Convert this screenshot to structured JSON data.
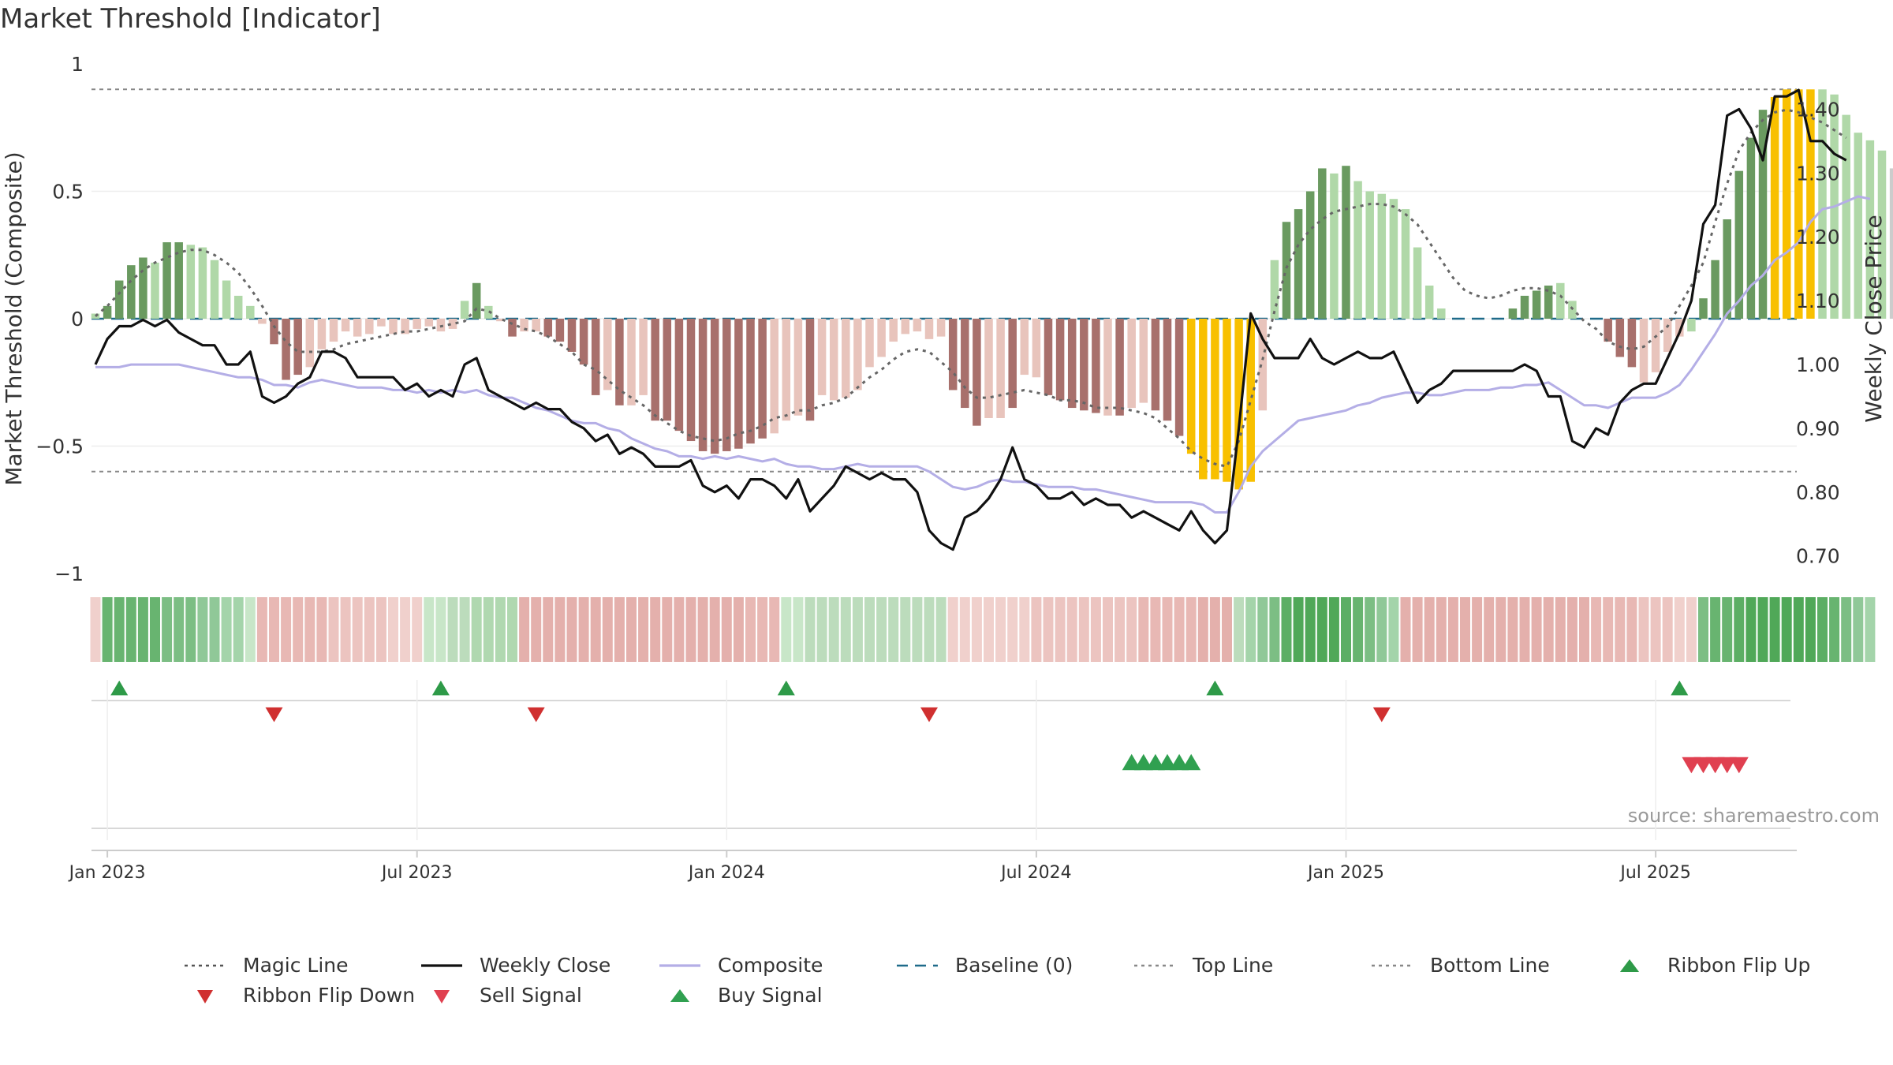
{
  "chart_data": {
    "type": "bar",
    "title": "Market Threshold [Indicator]",
    "ylabel": "Market Threshold (Composite)",
    "y2label": "Weekly Close Price",
    "ylim": [
      -1,
      1
    ],
    "y2lim": [
      0.65,
      1.45
    ],
    "y_ticks": [
      {
        "value": 1,
        "label": "1"
      },
      {
        "value": 0.5,
        "label": "0.5"
      },
      {
        "value": 0,
        "label": "0"
      },
      {
        "value": -0.5,
        "label": "−0.5"
      },
      {
        "value": -1,
        "label": "−1"
      }
    ],
    "y2_ticks": [
      {
        "value": 1.4,
        "label": "1.40"
      },
      {
        "value": 1.3,
        "label": "1.30"
      },
      {
        "value": 1.2,
        "label": "1.20"
      },
      {
        "value": 1.1,
        "label": "1.10"
      },
      {
        "value": 1.0,
        "label": "1.00"
      },
      {
        "value": 0.9,
        "label": "0.90"
      },
      {
        "value": 0.8,
        "label": "0.80"
      },
      {
        "value": 0.7,
        "label": "0.70"
      }
    ],
    "x_ticks": [
      {
        "week": 1,
        "label": "Jan 2023"
      },
      {
        "week": 27,
        "label": "Jul 2023"
      },
      {
        "week": 53,
        "label": "Jan 2024"
      },
      {
        "week": 79,
        "label": "Jul 2024"
      },
      {
        "week": 105,
        "label": "Jan 2025"
      },
      {
        "week": 131,
        "label": "Jul 2025"
      }
    ],
    "top_line": 0.9,
    "bottom_line": -0.6,
    "baseline": 0,
    "bar_colors": {
      "strong_up": "#6a9a60",
      "weak_up": "#b0d8a8",
      "strong_down": "#a8706c",
      "weak_down": "#e8c4bc",
      "extreme": "#f8c000"
    },
    "bars": [
      0.02,
      0.05,
      0.15,
      0.21,
      0.24,
      0.22,
      0.3,
      0.3,
      0.29,
      0.28,
      0.23,
      0.15,
      0.09,
      0.05,
      -0.02,
      -0.1,
      -0.24,
      -0.22,
      -0.19,
      -0.12,
      -0.09,
      -0.05,
      -0.07,
      -0.06,
      -0.03,
      -0.06,
      -0.06,
      -0.04,
      -0.03,
      -0.05,
      -0.04,
      0.07,
      0.14,
      0.05,
      -0.01,
      -0.07,
      -0.05,
      -0.05,
      -0.07,
      -0.09,
      -0.13,
      -0.18,
      -0.3,
      -0.28,
      -0.34,
      -0.34,
      -0.3,
      -0.4,
      -0.4,
      -0.44,
      -0.48,
      -0.52,
      -0.53,
      -0.52,
      -0.51,
      -0.49,
      -0.47,
      -0.45,
      -0.4,
      -0.38,
      -0.4,
      -0.3,
      -0.32,
      -0.31,
      -0.28,
      -0.19,
      -0.15,
      -0.09,
      -0.06,
      -0.05,
      -0.08,
      -0.07,
      -0.28,
      -0.35,
      -0.42,
      -0.39,
      -0.39,
      -0.35,
      -0.22,
      -0.23,
      -0.3,
      -0.32,
      -0.35,
      -0.36,
      -0.37,
      -0.38,
      -0.38,
      -0.35,
      -0.33,
      -0.36,
      -0.4,
      -0.46,
      -0.53,
      -0.63,
      -0.63,
      -0.64,
      -0.67,
      -0.64,
      -0.36,
      0.23,
      0.38,
      0.43,
      0.5,
      0.59,
      0.57,
      0.6,
      0.54,
      0.5,
      0.49,
      0.47,
      0.43,
      0.28,
      0.13,
      0.04,
      0.0,
      0.0,
      0.0,
      0.0,
      0.0,
      0.04,
      0.09,
      0.11,
      0.13,
      0.14,
      0.07,
      0.0,
      0.0,
      -0.09,
      -0.15,
      -0.19,
      -0.25,
      -0.21,
      -0.13,
      -0.07,
      -0.05,
      0.08,
      0.23,
      0.39,
      0.58,
      0.71,
      0.82,
      0.87,
      0.9,
      0.9,
      0.9,
      0.9,
      0.88,
      0.8,
      0.73,
      0.7,
      0.66,
      0.59
    ],
    "bar_classes": [
      "wu",
      "su",
      "su",
      "su",
      "su",
      "wu",
      "su",
      "su",
      "wu",
      "wu",
      "wu",
      "wu",
      "wu",
      "wu",
      "wd",
      "sd",
      "sd",
      "sd",
      "wd",
      "wd",
      "wd",
      "wd",
      "wd",
      "wd",
      "wd",
      "wd",
      "wd",
      "wd",
      "wd",
      "wd",
      "wd",
      "wu",
      "su",
      "wu",
      "wd",
      "sd",
      "wd",
      "wd",
      "sd",
      "sd",
      "sd",
      "sd",
      "sd",
      "wd",
      "sd",
      "wd",
      "wd",
      "sd",
      "sd",
      "sd",
      "sd",
      "sd",
      "sd",
      "sd",
      "sd",
      "sd",
      "sd",
      "wd",
      "wd",
      "wd",
      "sd",
      "wd",
      "wd",
      "wd",
      "wd",
      "wd",
      "wd",
      "wd",
      "wd",
      "wd",
      "wd",
      "wd",
      "sd",
      "sd",
      "sd",
      "wd",
      "wd",
      "sd",
      "wd",
      "wd",
      "sd",
      "sd",
      "sd",
      "sd",
      "sd",
      "wd",
      "sd",
      "wd",
      "wd",
      "sd",
      "sd",
      "sd",
      "ex",
      "ex",
      "ex",
      "ex",
      "ex",
      "ex",
      "wd",
      "wu",
      "su",
      "su",
      "su",
      "su",
      "wu",
      "su",
      "wu",
      "wu",
      "wu",
      "wu",
      "wu",
      "wu",
      "wu",
      "wu",
      "wu",
      "wu",
      "wu",
      "wu",
      "wu",
      "su",
      "su",
      "su",
      "su",
      "wu",
      "wu",
      "wu",
      "sd",
      "sd",
      "sd",
      "sd",
      "wd",
      "wd",
      "wd",
      "wd",
      "wu",
      "su",
      "su",
      "su",
      "su",
      "su",
      "su",
      "ex",
      "ex",
      "ex",
      "ex",
      "wu",
      "wu",
      "wu",
      "wu",
      "wu",
      "wu"
    ],
    "series": [
      {
        "name": "Weekly Close",
        "axis": "right",
        "values": [
          1.0,
          1.04,
          1.06,
          1.06,
          1.07,
          1.06,
          1.07,
          1.05,
          1.04,
          1.03,
          1.03,
          1.0,
          1.0,
          1.02,
          0.95,
          0.94,
          0.95,
          0.97,
          0.98,
          1.02,
          1.02,
          1.01,
          0.98,
          0.98,
          0.98,
          0.98,
          0.96,
          0.97,
          0.95,
          0.96,
          0.95,
          1.0,
          1.01,
          0.96,
          0.95,
          0.94,
          0.93,
          0.94,
          0.93,
          0.93,
          0.91,
          0.9,
          0.88,
          0.89,
          0.86,
          0.87,
          0.86,
          0.84,
          0.84,
          0.84,
          0.85,
          0.81,
          0.8,
          0.81,
          0.79,
          0.82,
          0.82,
          0.81,
          0.79,
          0.82,
          0.77,
          0.79,
          0.81,
          0.84,
          0.83,
          0.82,
          0.83,
          0.82,
          0.82,
          0.8,
          0.74,
          0.72,
          0.71,
          0.76,
          0.77,
          0.79,
          0.82,
          0.87,
          0.82,
          0.81,
          0.79,
          0.79,
          0.8,
          0.78,
          0.79,
          0.78,
          0.78,
          0.76,
          0.77,
          0.76,
          0.75,
          0.74,
          0.77,
          0.74,
          0.72,
          0.74,
          0.9,
          1.08,
          1.04,
          1.01,
          1.01,
          1.01,
          1.04,
          1.01,
          1.0,
          1.01,
          1.02,
          1.01,
          1.01,
          1.02,
          0.98,
          0.94,
          0.96,
          0.97,
          0.99,
          0.99,
          0.99,
          0.99,
          0.99,
          0.99,
          1.0,
          0.99,
          0.95,
          0.95,
          0.88,
          0.87,
          0.9,
          0.89,
          0.94,
          0.96,
          0.97,
          0.97,
          1.01,
          1.05,
          1.1,
          1.22,
          1.25,
          1.39,
          1.4,
          1.37,
          1.32,
          1.42,
          1.42,
          1.43,
          1.35,
          1.35,
          1.33,
          1.32
        ]
      },
      {
        "name": "Composite",
        "axis": "left",
        "values": [
          -0.19,
          -0.19,
          -0.19,
          -0.18,
          -0.18,
          -0.18,
          -0.18,
          -0.18,
          -0.19,
          -0.2,
          -0.21,
          -0.22,
          -0.23,
          -0.23,
          -0.24,
          -0.26,
          -0.26,
          -0.27,
          -0.25,
          -0.24,
          -0.25,
          -0.26,
          -0.27,
          -0.27,
          -0.27,
          -0.28,
          -0.28,
          -0.29,
          -0.28,
          -0.29,
          -0.28,
          -0.29,
          -0.28,
          -0.3,
          -0.31,
          -0.31,
          -0.33,
          -0.35,
          -0.36,
          -0.38,
          -0.4,
          -0.41,
          -0.41,
          -0.43,
          -0.44,
          -0.47,
          -0.49,
          -0.51,
          -0.52,
          -0.54,
          -0.54,
          -0.55,
          -0.54,
          -0.55,
          -0.54,
          -0.55,
          -0.56,
          -0.55,
          -0.57,
          -0.58,
          -0.58,
          -0.59,
          -0.59,
          -0.58,
          -0.57,
          -0.58,
          -0.58,
          -0.58,
          -0.58,
          -0.58,
          -0.6,
          -0.63,
          -0.66,
          -0.67,
          -0.66,
          -0.64,
          -0.63,
          -0.64,
          -0.64,
          -0.65,
          -0.66,
          -0.66,
          -0.66,
          -0.67,
          -0.67,
          -0.68,
          -0.69,
          -0.7,
          -0.71,
          -0.72,
          -0.72,
          -0.72,
          -0.72,
          -0.73,
          -0.76,
          -0.76,
          -0.68,
          -0.58,
          -0.52,
          -0.48,
          -0.44,
          -0.4,
          -0.39,
          -0.38,
          -0.37,
          -0.36,
          -0.34,
          -0.33,
          -0.31,
          -0.3,
          -0.29,
          -0.29,
          -0.3,
          -0.3,
          -0.29,
          -0.28,
          -0.28,
          -0.28,
          -0.27,
          -0.27,
          -0.26,
          -0.26,
          -0.25,
          -0.28,
          -0.31,
          -0.34,
          -0.34,
          -0.35,
          -0.33,
          -0.31,
          -0.31,
          -0.31,
          -0.29,
          -0.26,
          -0.2,
          -0.13,
          -0.06,
          0.02,
          0.07,
          0.13,
          0.17,
          0.23,
          0.26,
          0.3,
          0.38,
          0.43,
          0.44,
          0.46,
          0.48,
          0.47
        ]
      },
      {
        "name": "Magic Line",
        "axis": "left",
        "values": [
          0.01,
          0.05,
          0.1,
          0.15,
          0.19,
          0.22,
          0.24,
          0.26,
          0.27,
          0.27,
          0.25,
          0.22,
          0.18,
          0.12,
          0.05,
          -0.03,
          -0.09,
          -0.13,
          -0.13,
          -0.13,
          -0.12,
          -0.1,
          -0.09,
          -0.08,
          -0.07,
          -0.06,
          -0.05,
          -0.05,
          -0.04,
          -0.03,
          -0.02,
          -0.01,
          0.04,
          0.03,
          0.0,
          -0.02,
          -0.04,
          -0.05,
          -0.07,
          -0.1,
          -0.13,
          -0.18,
          -0.2,
          -0.24,
          -0.28,
          -0.31,
          -0.34,
          -0.38,
          -0.41,
          -0.44,
          -0.46,
          -0.47,
          -0.48,
          -0.47,
          -0.45,
          -0.44,
          -0.42,
          -0.39,
          -0.38,
          -0.36,
          -0.36,
          -0.34,
          -0.33,
          -0.31,
          -0.27,
          -0.23,
          -0.2,
          -0.16,
          -0.13,
          -0.12,
          -0.13,
          -0.17,
          -0.21,
          -0.27,
          -0.31,
          -0.31,
          -0.3,
          -0.29,
          -0.28,
          -0.29,
          -0.3,
          -0.32,
          -0.32,
          -0.33,
          -0.35,
          -0.35,
          -0.35,
          -0.36,
          -0.37,
          -0.39,
          -0.43,
          -0.47,
          -0.52,
          -0.55,
          -0.57,
          -0.58,
          -0.48,
          -0.32,
          -0.16,
          0.03,
          0.2,
          0.29,
          0.35,
          0.39,
          0.42,
          0.43,
          0.44,
          0.45,
          0.45,
          0.44,
          0.41,
          0.37,
          0.3,
          0.23,
          0.16,
          0.11,
          0.09,
          0.08,
          0.09,
          0.11,
          0.12,
          0.12,
          0.11,
          0.09,
          0.04,
          -0.01,
          -0.04,
          -0.09,
          -0.11,
          -0.12,
          -0.11,
          -0.07,
          -0.03,
          0.05,
          0.13,
          0.22,
          0.38,
          0.53,
          0.66,
          0.73,
          0.78,
          0.81,
          0.82,
          0.81,
          0.79,
          0.77,
          0.74,
          0.71
        ]
      }
    ],
    "ribbon": [
      "#f0d0cc",
      "#68b470",
      "#68b470",
      "#68b470",
      "#68b470",
      "#68b470",
      "#7cbe84",
      "#7cbe84",
      "#7cbe84",
      "#90c898",
      "#90c898",
      "#a4d4aa",
      "#a4d4aa",
      "#c8e6c8",
      "#e8b8b4",
      "#e8b8b4",
      "#e8b8b4",
      "#e8b8b4",
      "#e8b8b4",
      "#e8b8b4",
      "#ecc4c0",
      "#ecc4c0",
      "#ecc4c0",
      "#ecc4c0",
      "#ecc4c0",
      "#f0d0cc",
      "#f0d0cc",
      "#f0d0cc",
      "#c8e6c8",
      "#c8e6c8",
      "#bcdcbc",
      "#bcdcbc",
      "#b0d8b0",
      "#b0d8b0",
      "#b0d8b0",
      "#b0d8b0",
      "#e4b0ac",
      "#e4b0ac",
      "#e4b0ac",
      "#e4b0ac",
      "#e4b0ac",
      "#e4b0ac",
      "#e4b0ac",
      "#e4b0ac",
      "#e4b0ac",
      "#e4b0ac",
      "#e4b0ac",
      "#e4b0ac",
      "#e4b0ac",
      "#e4b0ac",
      "#e4b0ac",
      "#e4b0ac",
      "#e4b0ac",
      "#e4b0ac",
      "#e4b0ac",
      "#e8b8b4",
      "#e8b8b4",
      "#e8b8b4",
      "#c8e6c8",
      "#c8e6c8",
      "#bcdcbc",
      "#bcdcbc",
      "#bcdcbc",
      "#bcdcbc",
      "#bcdcbc",
      "#bcdcbc",
      "#bcdcbc",
      "#bcdcbc",
      "#bcdcbc",
      "#bcdcbc",
      "#bcdcbc",
      "#bcdcbc",
      "#f0d0cc",
      "#f0d0cc",
      "#f0d0cc",
      "#f0d0cc",
      "#f0d0cc",
      "#f0d0cc",
      "#f0d0cc",
      "#ecc4c0",
      "#ecc4c0",
      "#ecc4c0",
      "#ecc4c0",
      "#ecc4c0",
      "#ecc4c0",
      "#ecc4c0",
      "#ecc4c0",
      "#ecc4c0",
      "#e8b8b4",
      "#e8b8b4",
      "#e8b8b4",
      "#e8b8b4",
      "#e8b8b4",
      "#e4b0ac",
      "#e4b0ac",
      "#e4b0ac",
      "#bcdcbc",
      "#a4d4aa",
      "#90c898",
      "#7cbe84",
      "#5cae64",
      "#50a858",
      "#50a858",
      "#50a858",
      "#50a858",
      "#5cae64",
      "#68b470",
      "#7cbe84",
      "#90c898",
      "#a4d4aa",
      "#e4b0ac",
      "#e4b0ac",
      "#e4b0ac",
      "#e4b0ac",
      "#e4b0ac",
      "#e4b0ac",
      "#e4b0ac",
      "#e4b0ac",
      "#e4b0ac",
      "#e4b0ac",
      "#e4b0ac",
      "#e4b0ac",
      "#e4b0ac",
      "#e4b0ac",
      "#e4b0ac",
      "#e4b0ac",
      "#e8b8b4",
      "#e8b8b4",
      "#e8b8b4",
      "#e8b8b4",
      "#ecc4c0",
      "#ecc4c0",
      "#ecc4c0",
      "#f0d0cc",
      "#f0d0cc",
      "#7cbe84",
      "#68b470",
      "#68b470",
      "#5cae64",
      "#50a858",
      "#50a858",
      "#50a858",
      "#50a858",
      "#50a858",
      "#50a858",
      "#5cae64",
      "#68b470",
      "#7cbe84",
      "#90c898",
      "#a4d4aa"
    ],
    "ribbon_flip_up_weeks": [
      2,
      29,
      58,
      94,
      133
    ],
    "ribbon_flip_down_weeks": [
      15,
      37,
      70,
      108
    ],
    "buy_signal_weeks": [
      87,
      88,
      89,
      90,
      91,
      92
    ],
    "sell_signal_weeks": [
      134,
      135,
      136,
      137,
      138
    ]
  },
  "source_text": "source: sharemaestro.com",
  "legend": [
    {
      "label": "Magic Line",
      "symbol": "dotted",
      "color": "#555555"
    },
    {
      "label": "Weekly Close",
      "symbol": "solid",
      "color": "#111111"
    },
    {
      "label": "Composite",
      "symbol": "solid",
      "color": "#b4aee6"
    },
    {
      "label": "Baseline (0)",
      "symbol": "dashed",
      "color": "#1f6b8a"
    },
    {
      "label": "Top Line",
      "symbol": "dotted",
      "color": "#888888"
    },
    {
      "label": "Bottom Line",
      "symbol": "dotted",
      "color": "#888888"
    },
    {
      "label": "Ribbon Flip Up",
      "symbol": "triangle-up",
      "color": "#2e9a48"
    },
    {
      "label": "Ribbon Flip Down",
      "symbol": "triangle-down",
      "color": "#d03030"
    },
    {
      "label": "Sell Signal",
      "symbol": "triangle-down",
      "color": "#e04050"
    },
    {
      "label": "Buy Signal",
      "symbol": "triangle-up",
      "color": "#30a050"
    }
  ]
}
